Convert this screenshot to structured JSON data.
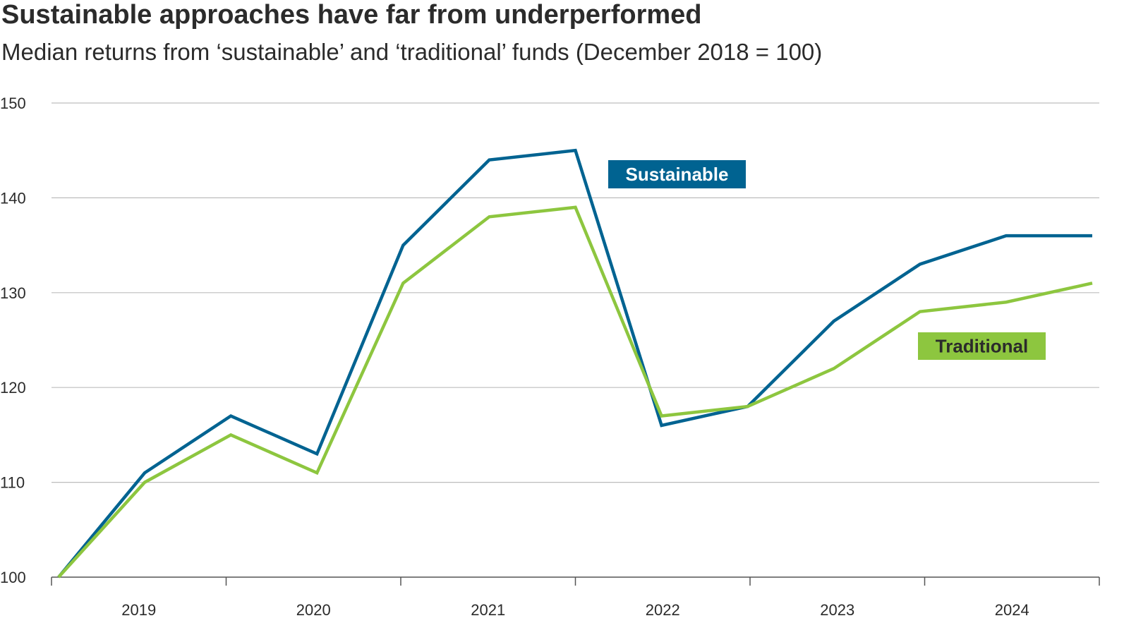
{
  "chart_data": {
    "type": "line",
    "title": "Sustainable approaches have far from underperformed",
    "subtitle": "Median returns from ‘sustainable’ and ‘traditional’ funds (December 2018 = 100)",
    "xlabel": "",
    "ylabel": "",
    "ylim": [
      100,
      150
    ],
    "yticks": [
      "100",
      "110",
      "120",
      "130",
      "140",
      "150"
    ],
    "xticks": [
      "2019",
      "2020",
      "2021",
      "2022",
      "2023",
      "2024"
    ],
    "x": [
      "Dec 2018",
      "Jun 2019",
      "Dec 2019",
      "Jun 2020",
      "Dec 2020",
      "Jun 2021",
      "Dec 2021",
      "Jun 2022",
      "Dec 2022",
      "Jun 2023",
      "Dec 2023",
      "Jun 2024",
      "Dec 2024"
    ],
    "grid": true,
    "series": [
      {
        "name": "Sustainable",
        "color": "#006391",
        "values": [
          100,
          111,
          117,
          113,
          135,
          144,
          145,
          116,
          118,
          127,
          133,
          136,
          136
        ]
      },
      {
        "name": "Traditional",
        "color": "#8dc63f",
        "values": [
          100,
          110,
          115,
          111,
          131,
          138,
          139,
          117,
          118,
          122,
          128,
          129,
          131
        ]
      }
    ]
  }
}
